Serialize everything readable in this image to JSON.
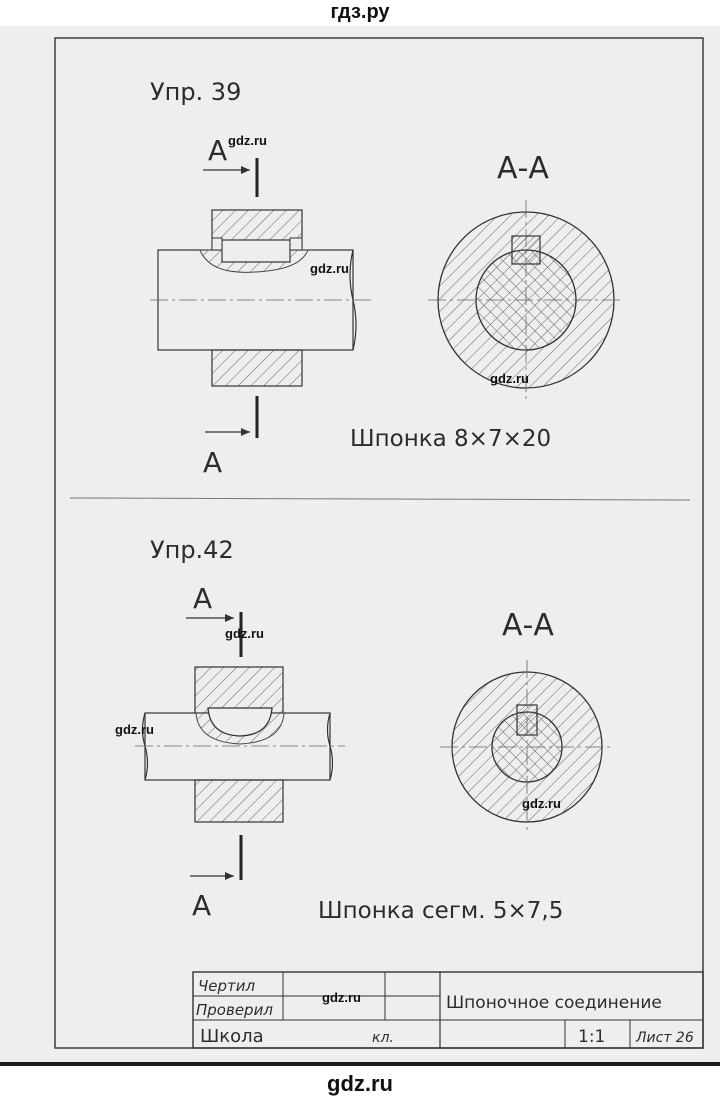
{
  "site": {
    "header": "гдз.ру",
    "footer": "gdz.ru"
  },
  "watermark": "gdz.ru",
  "exercise1": {
    "title": "Упр. 39",
    "section_top": "А",
    "section_bottom": "А",
    "section_view": "А-А",
    "caption": "Шпонка 8×7×20"
  },
  "exercise2": {
    "title": "Упр.42",
    "section_top": "А",
    "section_bottom": "А",
    "section_view": "А-А",
    "caption": "Шпонка сегм. 5×7,5"
  },
  "title_block": {
    "drawn_label": "Чертил",
    "checked_label": "Проверил",
    "school_label": "Школа",
    "class_label": "кл.",
    "drawing_title": "Шпоночное соединение",
    "scale": "1:1",
    "sheet": "Лист 26"
  }
}
